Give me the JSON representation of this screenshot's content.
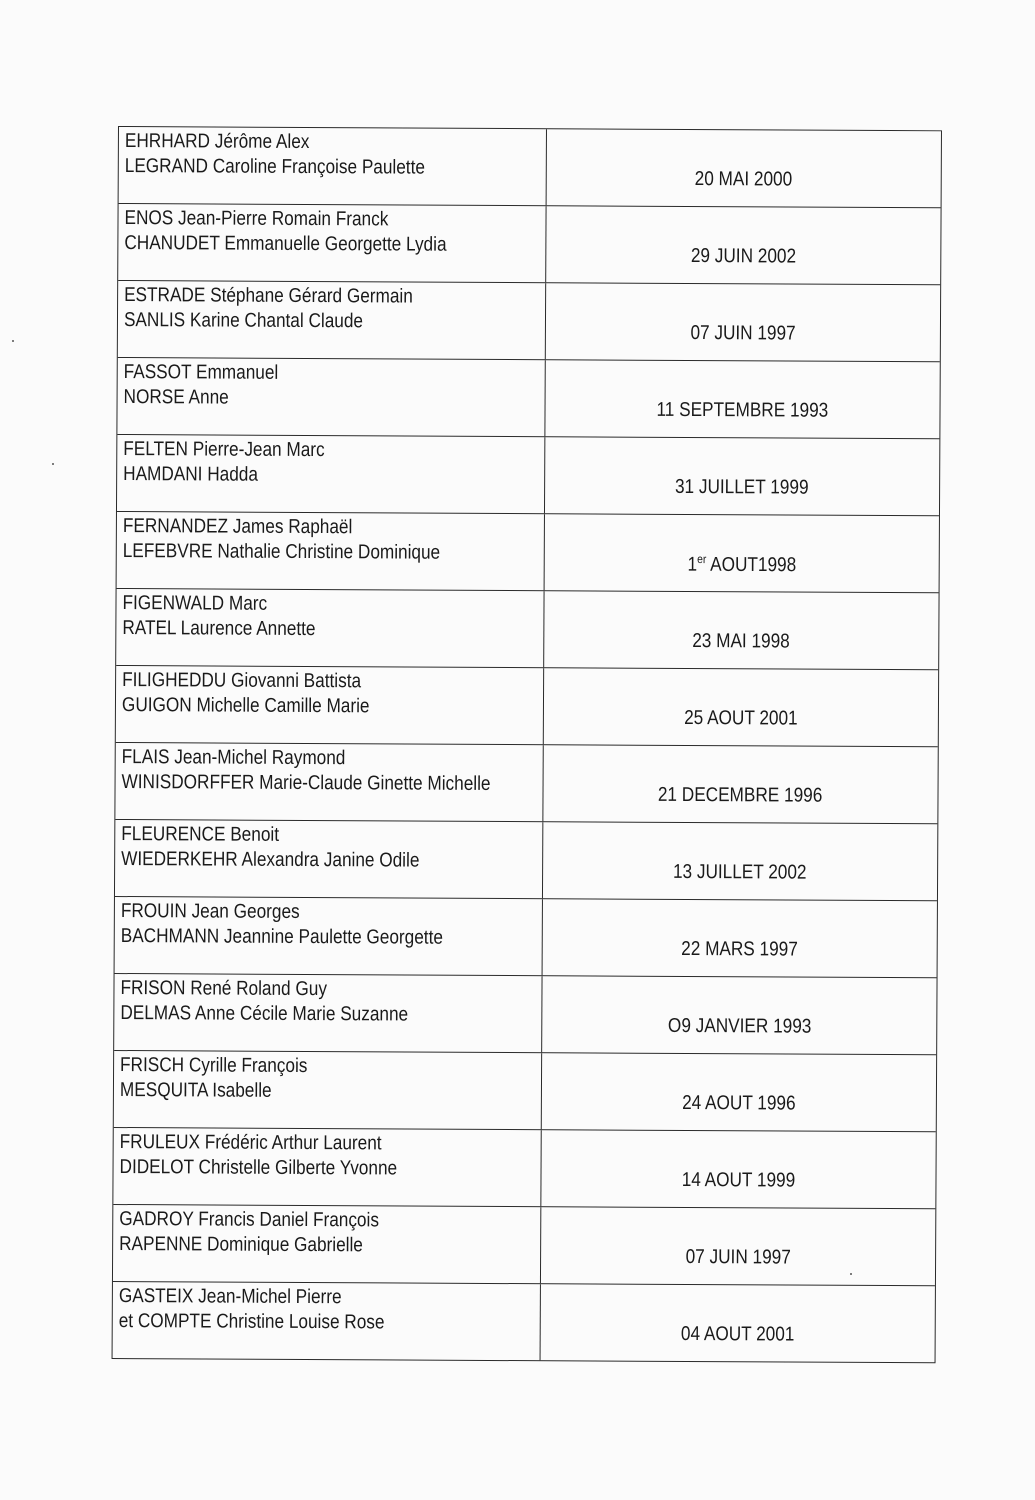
{
  "rows": [
    {
      "line1": "EHRHARD Jérôme Alex",
      "line2": "LEGRAND Caroline Françoise Paulette",
      "date": "20 MAI 2000"
    },
    {
      "line1": "ENOS Jean-Pierre Romain Franck",
      "line2": "CHANUDET Emmanuelle Georgette Lydia",
      "date": "29 JUIN 2002"
    },
    {
      "line1": "ESTRADE Stéphane Gérard Germain",
      "line2": "SANLIS Karine Chantal Claude",
      "date": "07 JUIN 1997"
    },
    {
      "line1": "FASSOT Emmanuel",
      "line2": "NORSE Anne",
      "date": "11 SEPTEMBRE 1993"
    },
    {
      "line1": "FELTEN Pierre-Jean Marc",
      "line2": "HAMDANI Hadda",
      "date": "31 JUILLET 1999"
    },
    {
      "line1": "FERNANDEZ James Raphaël",
      "line2": "LEFEBVRE Nathalie Christine Dominique",
      "date_pre": "1",
      "date_sup": "er",
      "date": " AOUT1998"
    },
    {
      "line1": "FIGENWALD Marc",
      "line2": "RATEL Laurence Annette",
      "date": "23 MAI 1998"
    },
    {
      "line1": "FILIGHEDDU Giovanni Battista",
      "line2": "GUIGON Michelle Camille Marie",
      "date": "25 AOUT 2001"
    },
    {
      "line1": "FLAIS Jean-Michel Raymond",
      "line2": "WINISDORFFER Marie-Claude Ginette Michelle",
      "date": "21 DECEMBRE 1996"
    },
    {
      "line1": "FLEURENCE Benoit",
      "line2": "WIEDERKEHR Alexandra Janine Odile",
      "date": "13 JUILLET 2002"
    },
    {
      "line1": "FROUIN Jean Georges",
      "line2": "BACHMANN Jeannine Paulette Georgette",
      "date": "22 MARS 1997"
    },
    {
      "line1": "FRISON René Roland Guy",
      "line2": "DELMAS Anne Cécile Marie Suzanne",
      "date": "O9 JANVIER 1993"
    },
    {
      "line1": "FRISCH Cyrille François",
      "line2": "MESQUITA Isabelle",
      "date": "24 AOUT 1996"
    },
    {
      "line1": "FRULEUX Frédéric Arthur Laurent",
      "line2": "DIDELOT Christelle Gilberte Yvonne",
      "date": "14 AOUT 1999"
    },
    {
      "line1": "GADROY Francis Daniel François",
      "line2": "RAPENNE Dominique Gabrielle",
      "date": "07 JUIN 1997"
    },
    {
      "line1": "GASTEIX Jean-Michel Pierre",
      "line2": "et COMPTE Christine Louise Rose",
      "date": "04 AOUT 2001"
    }
  ]
}
